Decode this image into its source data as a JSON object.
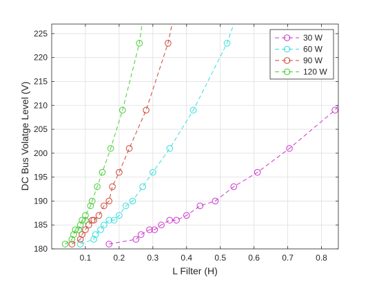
{
  "chart_data": {
    "type": "line",
    "xlabel": "L Filter (H)",
    "ylabel": "DC Bus Volatge Level (V)",
    "xlim": [
      0,
      0.85
    ],
    "ylim": [
      180,
      227
    ],
    "x_ticks": [
      0.1,
      0.2,
      0.3,
      0.4,
      0.5,
      0.6,
      0.7,
      0.8
    ],
    "y_ticks": [
      180,
      185,
      190,
      195,
      200,
      205,
      210,
      215,
      220,
      225
    ],
    "grid": true,
    "legend_position": "top-right",
    "line_style": "dashed",
    "marker": "circle",
    "series": [
      {
        "name": "30 W",
        "color": "#cc33cc",
        "points": [
          [
            0.17,
            181
          ],
          [
            0.25,
            182
          ],
          [
            0.265,
            183
          ],
          [
            0.29,
            184
          ],
          [
            0.305,
            184
          ],
          [
            0.325,
            185
          ],
          [
            0.35,
            186
          ],
          [
            0.37,
            186
          ],
          [
            0.4,
            187
          ],
          [
            0.44,
            189
          ],
          [
            0.485,
            190
          ],
          [
            0.54,
            193
          ],
          [
            0.61,
            196
          ],
          [
            0.705,
            201
          ],
          [
            0.84,
            209
          ],
          [
            0.87,
            212
          ]
        ]
      },
      {
        "name": "60 W",
        "color": "#33dddd",
        "points": [
          [
            0.085,
            181
          ],
          [
            0.125,
            182
          ],
          [
            0.13,
            183
          ],
          [
            0.145,
            184
          ],
          [
            0.155,
            185
          ],
          [
            0.17,
            186
          ],
          [
            0.185,
            186
          ],
          [
            0.2,
            187
          ],
          [
            0.22,
            189
          ],
          [
            0.24,
            190
          ],
          [
            0.27,
            193
          ],
          [
            0.3,
            196
          ],
          [
            0.35,
            201
          ],
          [
            0.42,
            209
          ],
          [
            0.52,
            223
          ],
          [
            0.545,
            228
          ]
        ]
      },
      {
        "name": "90 W",
        "color": "#cc4433",
        "points": [
          [
            0.06,
            181
          ],
          [
            0.085,
            182
          ],
          [
            0.09,
            183
          ],
          [
            0.1,
            184
          ],
          [
            0.11,
            185
          ],
          [
            0.12,
            186
          ],
          [
            0.125,
            186
          ],
          [
            0.14,
            187
          ],
          [
            0.155,
            189
          ],
          [
            0.17,
            190
          ],
          [
            0.18,
            193
          ],
          [
            0.2,
            196
          ],
          [
            0.23,
            201
          ],
          [
            0.28,
            209
          ],
          [
            0.345,
            223
          ],
          [
            0.36,
            228
          ]
        ]
      },
      {
        "name": "120 W",
        "color": "#44cc33",
        "points": [
          [
            0.04,
            181
          ],
          [
            0.06,
            182
          ],
          [
            0.065,
            183
          ],
          [
            0.07,
            184
          ],
          [
            0.08,
            184
          ],
          [
            0.085,
            185
          ],
          [
            0.09,
            186
          ],
          [
            0.1,
            186
          ],
          [
            0.1,
            187
          ],
          [
            0.115,
            189
          ],
          [
            0.12,
            190
          ],
          [
            0.135,
            193
          ],
          [
            0.15,
            196
          ],
          [
            0.175,
            201
          ],
          [
            0.21,
            209
          ],
          [
            0.26,
            223
          ],
          [
            0.27,
            228
          ]
        ]
      }
    ]
  }
}
